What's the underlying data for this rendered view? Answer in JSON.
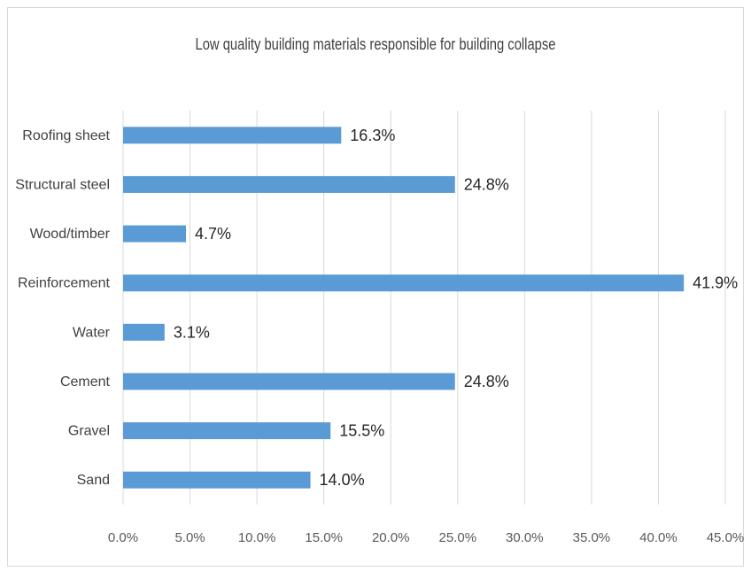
{
  "chart_data": {
    "type": "bar",
    "orientation": "horizontal",
    "title": "Low quality building materials responsible for building collapse",
    "categories": [
      "Roofing sheet",
      "Structural steel",
      "Wood/timber",
      "Reinforcement",
      "Water",
      "Cement",
      "Gravel",
      "Sand"
    ],
    "values": [
      16.3,
      24.8,
      4.7,
      41.9,
      3.1,
      24.8,
      15.5,
      14.0
    ],
    "value_labels": [
      "16.3%",
      "24.8%",
      "4.7%",
      "41.9%",
      "3.1%",
      "24.8%",
      "15.5%",
      "14.0%"
    ],
    "xticks": [
      0,
      5,
      10,
      15,
      20,
      25,
      30,
      35,
      40,
      45
    ],
    "xtick_labels": [
      "0.0%",
      "5.0%",
      "10.0%",
      "15.0%",
      "20.0%",
      "25.0%",
      "30.0%",
      "35.0%",
      "40.0%",
      "45.0%"
    ],
    "xlim": [
      0,
      45
    ],
    "xlabel": "",
    "ylabel": "",
    "grid": true,
    "legend": "none",
    "bar_color": "#5b9bd5",
    "grid_color": "#d9d9d9"
  }
}
